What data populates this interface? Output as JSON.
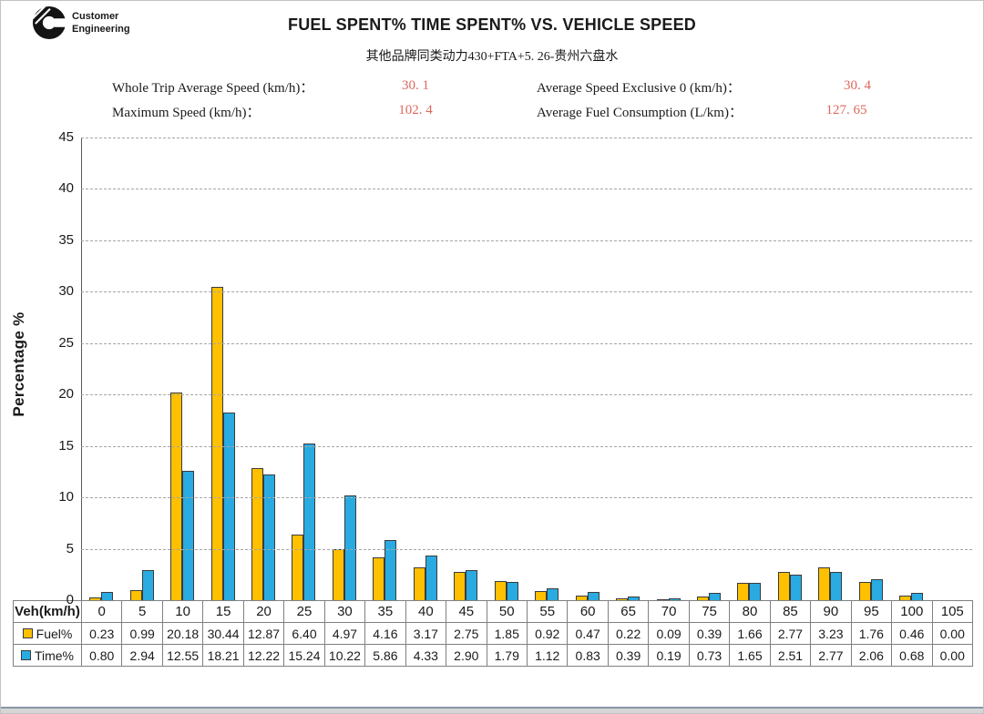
{
  "logo": {
    "icon": "cummins-c-logo",
    "line1": "Customer",
    "line2": "Engineering"
  },
  "title": "FUEL SPENT% TIME SPENT% VS. VEHICLE SPEED",
  "subtitle": "其他品牌同类动力430+FTA+5. 26-贵州六盘水",
  "stats": {
    "row1_left": {
      "label": "Whole Trip Average Speed (km/h)：",
      "value": "30. 1"
    },
    "row1_right": {
      "label": "Average Speed Exclusive 0 (km/h)：",
      "value": "30. 4"
    },
    "row2_left": {
      "label": "Maximum Speed (km/h)：",
      "value": "102. 4"
    },
    "row2_right": {
      "label": "Average Fuel Consumption (L/km)：",
      "value": "127. 65"
    }
  },
  "colors": {
    "fuel": "#FFC000",
    "time": "#29ABE2",
    "stat_value": "#DC685C",
    "grid": "#A6A6A6",
    "axis": "#595959",
    "table_border": "#808080",
    "bar_outline": "#3B3B3B"
  },
  "table": {
    "corner": "Veh(km/h)"
  },
  "chart_data": {
    "type": "bar",
    "title": "FUEL SPENT% TIME SPENT% VS. VEHICLE SPEED",
    "xlabel": "Veh(km/h)",
    "ylabel": "Percentage %",
    "ylim": [
      0,
      45
    ],
    "ytick_step": 5,
    "grid": true,
    "legend_position": "table-row-headers",
    "categories": [
      0,
      5,
      10,
      15,
      20,
      25,
      30,
      35,
      40,
      45,
      50,
      55,
      60,
      65,
      70,
      75,
      80,
      85,
      90,
      95,
      100,
      105
    ],
    "series": [
      {
        "name": "Fuel%",
        "color": "#FFC000",
        "values": [
          0.23,
          0.99,
          20.18,
          30.44,
          12.87,
          6.4,
          4.97,
          4.16,
          3.17,
          2.75,
          1.85,
          0.92,
          0.47,
          0.22,
          0.09,
          0.39,
          1.66,
          2.77,
          3.23,
          1.76,
          0.46,
          0.0
        ]
      },
      {
        "name": "Time%",
        "color": "#29ABE2",
        "values": [
          0.8,
          2.94,
          12.55,
          18.21,
          12.22,
          15.24,
          10.22,
          5.86,
          4.33,
          2.9,
          1.79,
          1.12,
          0.83,
          0.39,
          0.19,
          0.73,
          1.65,
          2.51,
          2.77,
          2.06,
          0.68,
          0.0
        ]
      }
    ]
  }
}
